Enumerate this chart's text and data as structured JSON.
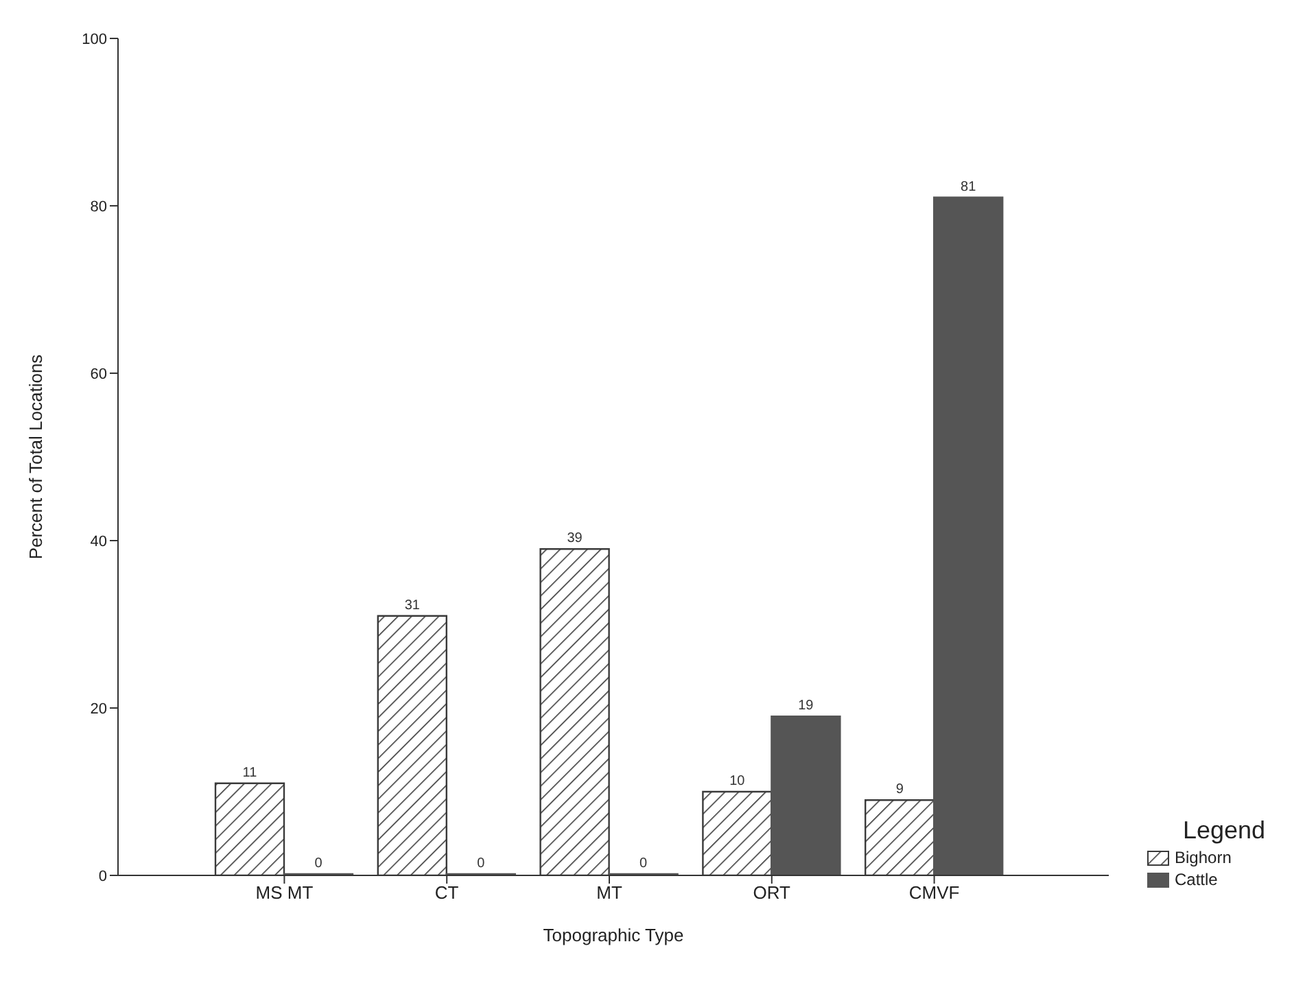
{
  "chart_data": {
    "type": "bar",
    "xlabel": "Topographic Type",
    "ylabel": "Percent of Total Locations",
    "legend_title": "Legend",
    "categories": [
      "MS MT",
      "CT",
      "MT",
      "ORT",
      "CMVF"
    ],
    "series": [
      {
        "name": "Bighorn",
        "color": "#3a3a3a",
        "values": [
          11,
          31,
          39,
          10,
          9
        ]
      },
      {
        "name": "Cattle",
        "color": "#555555",
        "values": [
          0,
          0,
          0,
          19,
          81
        ]
      }
    ],
    "ylim": [
      0,
      100
    ],
    "yticks": [
      0,
      20,
      40,
      60,
      80,
      100
    ],
    "grid": false,
    "legend": "bottom right",
    "data_labels": true
  }
}
